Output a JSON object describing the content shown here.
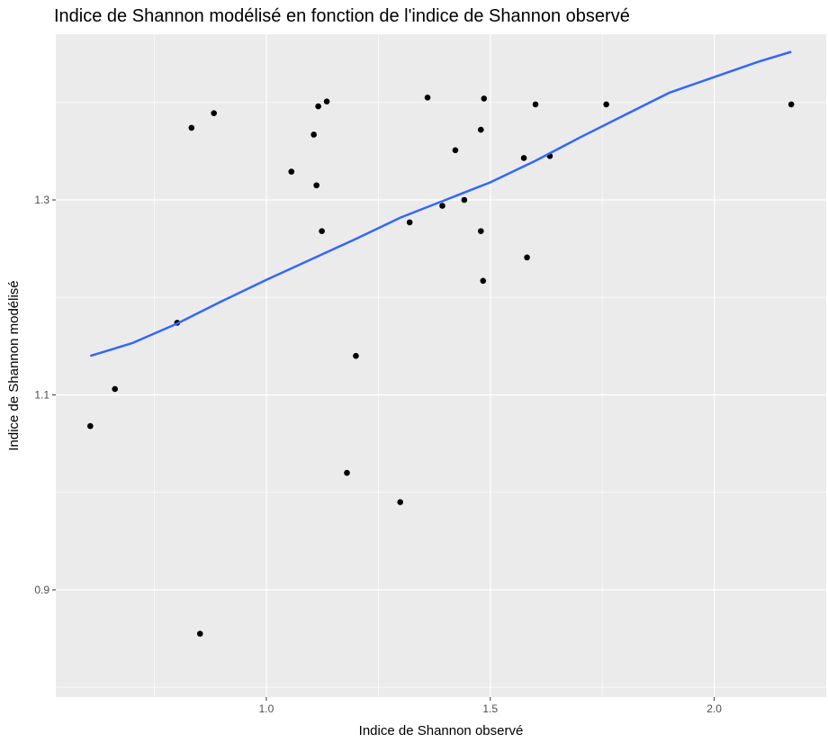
{
  "chart_data": {
    "type": "scatter",
    "title": "Indice de Shannon modélisé en fonction de l'indice de Shannon observé",
    "xlabel": "Indice de Shannon observé",
    "ylabel": "Indice de Shannon modélisé",
    "xlim": [
      0.53,
      2.25
    ],
    "ylim": [
      0.79,
      1.47
    ],
    "x_ticks": [
      1.0,
      1.5,
      2.0
    ],
    "x_tick_labels": [
      "1.0",
      "1.5",
      "2.0"
    ],
    "y_ticks": [
      0.9,
      1.1,
      1.3
    ],
    "y_tick_labels": [
      "0.9",
      "1.1",
      "1.3"
    ],
    "grid": true,
    "colors": {
      "panel": "#EBEBEB",
      "grid": "#FFFFFF",
      "points": "#000000",
      "line": "#3366FF"
    },
    "points": [
      {
        "x": 0.607,
        "y": 1.068
      },
      {
        "x": 0.662,
        "y": 1.106
      },
      {
        "x": 0.801,
        "y": 1.174
      },
      {
        "x": 0.833,
        "y": 1.374
      },
      {
        "x": 0.852,
        "y": 0.855
      },
      {
        "x": 0.883,
        "y": 1.389
      },
      {
        "x": 1.056,
        "y": 1.329
      },
      {
        "x": 1.106,
        "y": 1.367
      },
      {
        "x": 1.112,
        "y": 1.315
      },
      {
        "x": 1.116,
        "y": 1.396
      },
      {
        "x": 1.124,
        "y": 1.268
      },
      {
        "x": 1.135,
        "y": 1.401
      },
      {
        "x": 1.18,
        "y": 1.02
      },
      {
        "x": 1.2,
        "y": 1.14
      },
      {
        "x": 1.299,
        "y": 0.99
      },
      {
        "x": 1.32,
        "y": 1.277
      },
      {
        "x": 1.36,
        "y": 1.405
      },
      {
        "x": 1.393,
        "y": 1.294
      },
      {
        "x": 1.422,
        "y": 1.351
      },
      {
        "x": 1.442,
        "y": 1.3
      },
      {
        "x": 1.479,
        "y": 1.372
      },
      {
        "x": 1.479,
        "y": 1.268
      },
      {
        "x": 1.484,
        "y": 1.217
      },
      {
        "x": 1.486,
        "y": 1.404
      },
      {
        "x": 1.575,
        "y": 1.343
      },
      {
        "x": 1.582,
        "y": 1.241
      },
      {
        "x": 1.601,
        "y": 1.398
      },
      {
        "x": 1.633,
        "y": 1.345
      },
      {
        "x": 1.759,
        "y": 1.398
      },
      {
        "x": 2.172,
        "y": 1.398
      }
    ],
    "smooth_line": [
      {
        "x": 0.607,
        "y": 1.14
      },
      {
        "x": 0.7,
        "y": 1.153
      },
      {
        "x": 0.8,
        "y": 1.173
      },
      {
        "x": 0.9,
        "y": 1.196
      },
      {
        "x": 1.0,
        "y": 1.218
      },
      {
        "x": 1.1,
        "y": 1.239
      },
      {
        "x": 1.2,
        "y": 1.26
      },
      {
        "x": 1.3,
        "y": 1.282
      },
      {
        "x": 1.4,
        "y": 1.3
      },
      {
        "x": 1.5,
        "y": 1.318
      },
      {
        "x": 1.6,
        "y": 1.34
      },
      {
        "x": 1.7,
        "y": 1.364
      },
      {
        "x": 1.8,
        "y": 1.387
      },
      {
        "x": 1.9,
        "y": 1.41
      },
      {
        "x": 2.0,
        "y": 1.426
      },
      {
        "x": 2.1,
        "y": 1.442
      },
      {
        "x": 2.172,
        "y": 1.452
      }
    ]
  }
}
